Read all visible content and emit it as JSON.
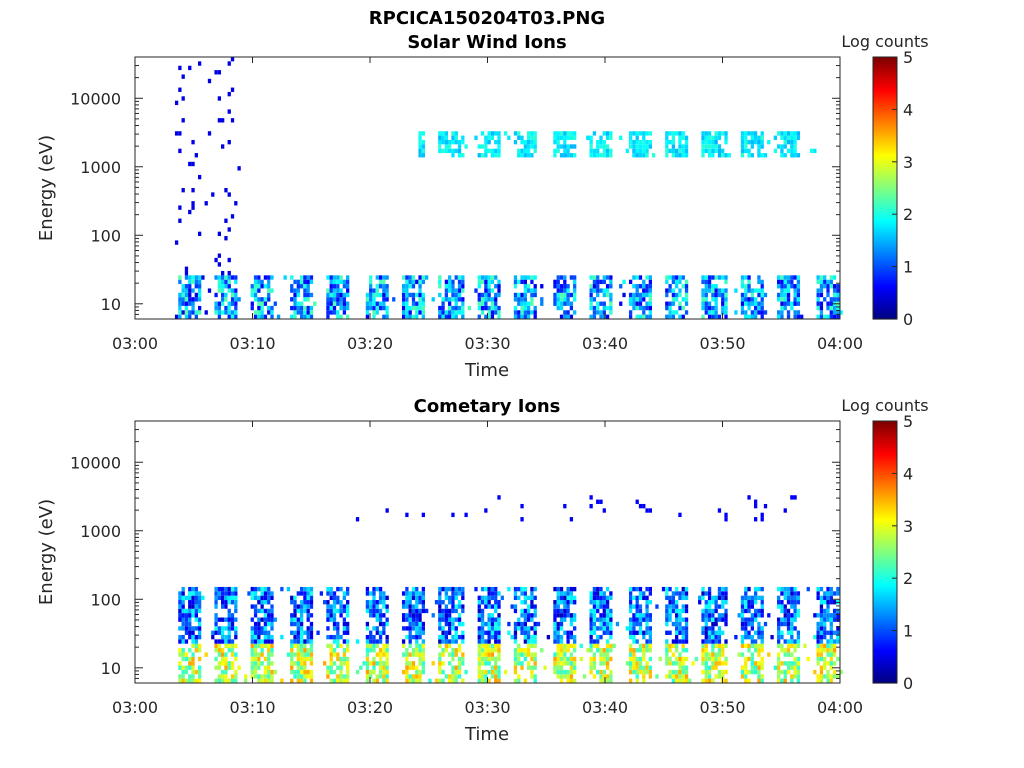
{
  "figure": {
    "title": "RPCICA150204T03.PNG"
  },
  "colors": {
    "colormap": [
      "#00007f",
      "#0000ff",
      "#007fff",
      "#00ffff",
      "#7fff7f",
      "#ffff00",
      "#ff7f00",
      "#ff0000",
      "#7f0000"
    ],
    "axis": "#262626"
  },
  "chart_data": [
    {
      "type": "heatmap",
      "title": "Solar Wind Ions",
      "xlabel": "Time",
      "ylabel": "Energy (eV)",
      "x_ticks": [
        "03:00",
        "03:10",
        "03:20",
        "03:30",
        "03:40",
        "03:50",
        "04:00"
      ],
      "x_range_minutes": [
        0,
        60
      ],
      "y_scale": "log",
      "y_ticks": [
        10,
        100,
        1000,
        10000
      ],
      "y_tick_labels": [
        "10",
        "100",
        "1000",
        "10000"
      ],
      "ylim": [
        6,
        40000
      ],
      "colorbar": {
        "label": "Log counts",
        "range": [
          0,
          5
        ],
        "ticks": [
          "0",
          "1",
          "2",
          "3",
          "4",
          "5"
        ]
      },
      "sweep_period_minutes": 3.2,
      "notes_regions": [
        {
          "minute_range": [
            3.2,
            8.8
          ],
          "energy_range": [
            6,
            40000
          ],
          "log_counts": 0.5,
          "description": "sparse dark-blue streaks across all energies"
        },
        {
          "minute_range": [
            3.5,
            60
          ],
          "energy_range": [
            6,
            28
          ],
          "log_counts": [
            0.5,
            2.3
          ],
          "description": "periodic low-energy bursts each sweep"
        },
        {
          "minute_range": [
            24,
            58
          ],
          "energy_range": [
            1400,
            3500
          ],
          "log_counts": [
            1.5,
            2.1
          ],
          "description": "cyan solar wind patches near 1.5-3 keV"
        }
      ]
    },
    {
      "type": "heatmap",
      "title": "Cometary Ions",
      "xlabel": "Time",
      "ylabel": "Energy (eV)",
      "x_ticks": [
        "03:00",
        "03:10",
        "03:20",
        "03:30",
        "03:40",
        "03:50",
        "04:00"
      ],
      "x_range_minutes": [
        0,
        60
      ],
      "y_scale": "log",
      "y_ticks": [
        10,
        100,
        1000,
        10000
      ],
      "y_tick_labels": [
        "10",
        "100",
        "1000",
        "10000"
      ],
      "ylim": [
        6,
        40000
      ],
      "colorbar": {
        "label": "Log counts",
        "range": [
          0,
          5
        ],
        "ticks": [
          "0",
          "1",
          "2",
          "3",
          "4",
          "5"
        ]
      },
      "sweep_period_minutes": 3.2,
      "notes_regions": [
        {
          "minute_range": [
            3.5,
            60
          ],
          "energy_range": [
            6,
            22
          ],
          "log_counts": [
            2.0,
            3.6
          ],
          "description": "strong low-energy cometary ion bursts (green-yellow-orange)"
        },
        {
          "minute_range": [
            3.5,
            60
          ],
          "energy_range": [
            22,
            150
          ],
          "log_counts": [
            0.3,
            2.0
          ],
          "description": "blue speckled cometary ion extension"
        },
        {
          "minute_range": [
            18,
            58
          ],
          "energy_range": [
            1400,
            3500
          ],
          "log_counts": 0.6,
          "description": "faint blue points near 1.5-3 keV"
        }
      ]
    }
  ]
}
